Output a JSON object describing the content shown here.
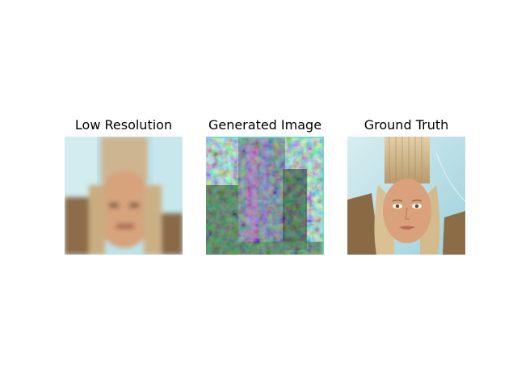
{
  "figure": {
    "panels": [
      {
        "title": "Low Resolution",
        "image_icon": "blurry-portrait-image"
      },
      {
        "title": "Generated Image",
        "image_icon": "noisy-generated-image"
      },
      {
        "title": "Ground Truth",
        "image_icon": "portrait-photo-image"
      }
    ]
  },
  "colors": {
    "background": "#ffffff",
    "title_text": "#000000",
    "sky": "#bfe3ea",
    "hair": "#cdb38a",
    "skin": "#d8a07a",
    "rock": "#8a6a45",
    "generated_green": "#1f5a2a",
    "generated_magenta": "#c85ad8",
    "generated_cyan": "#7fe0d0"
  }
}
